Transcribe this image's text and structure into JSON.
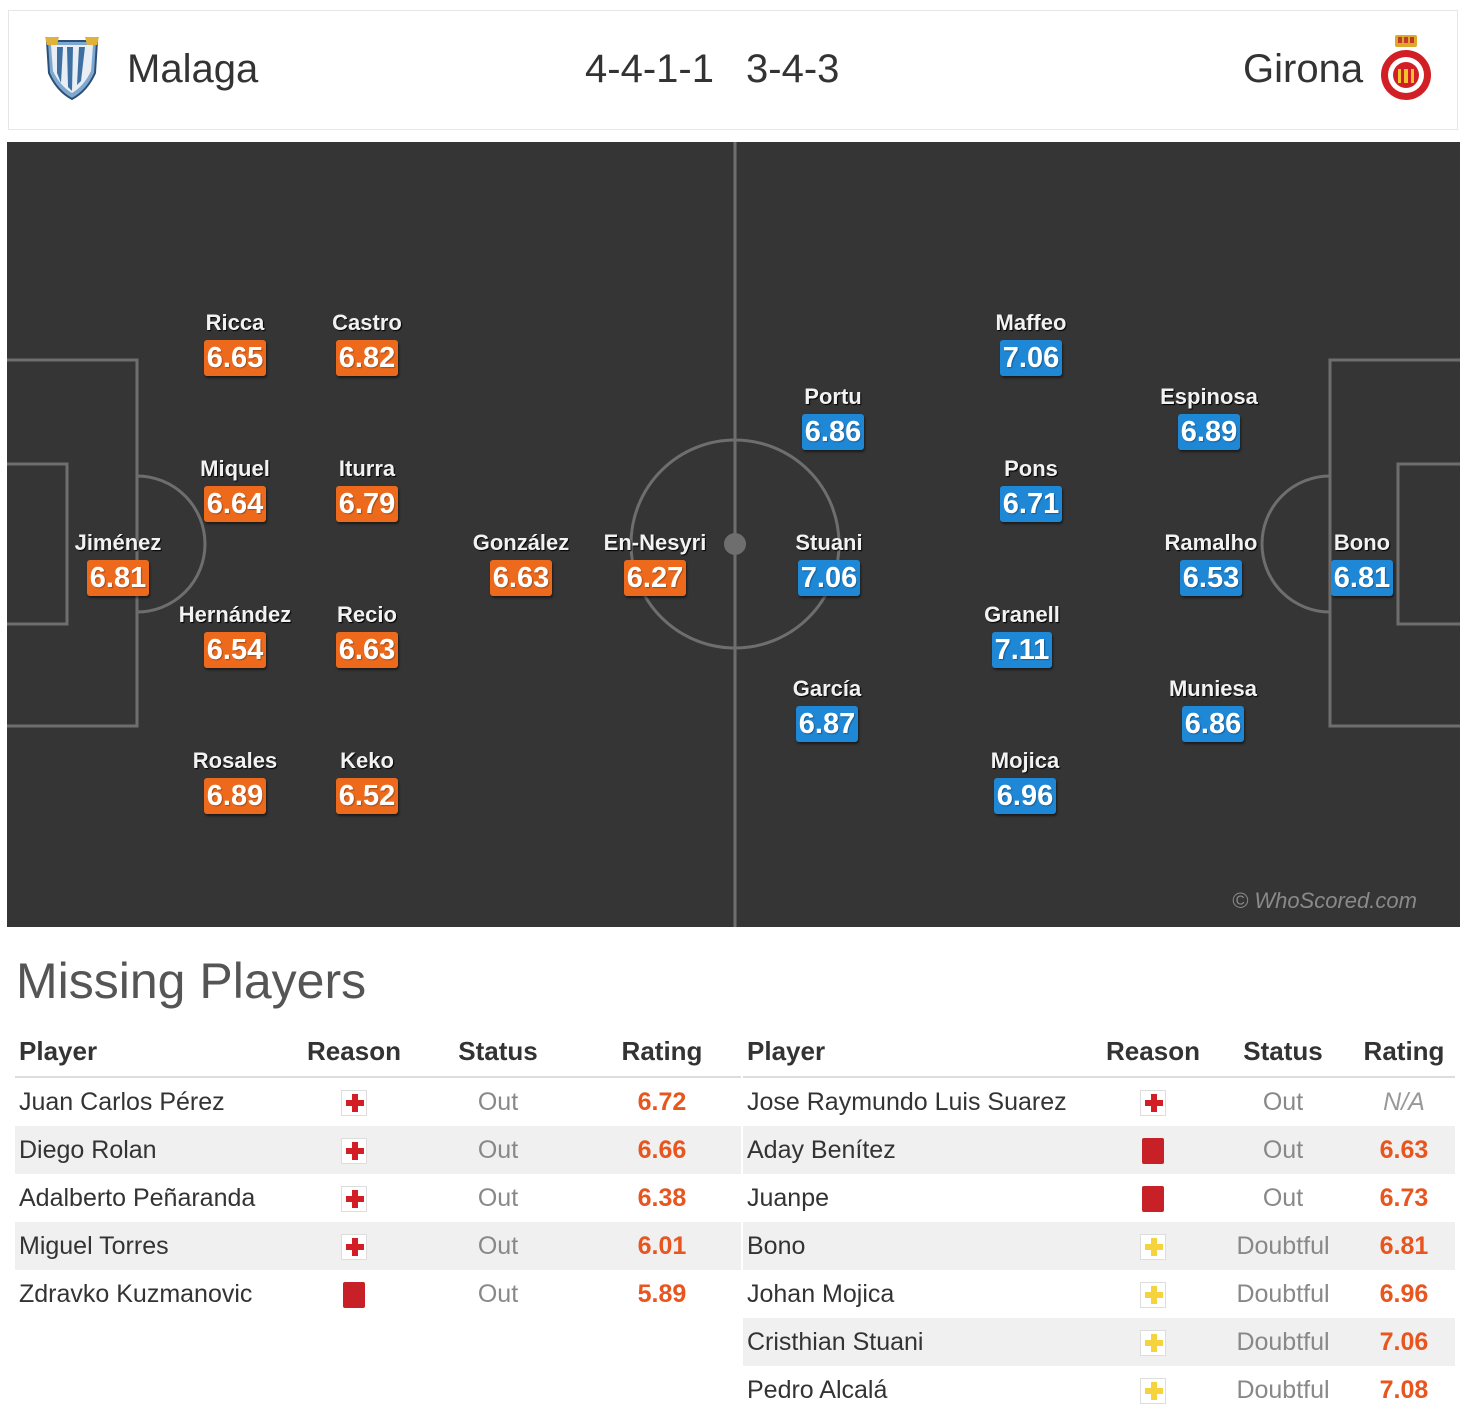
{
  "header": {
    "home_team": "Malaga",
    "away_team": "Girona",
    "home_formation": "4-4-1-1",
    "away_formation": "3-4-3"
  },
  "colors": {
    "pitch": "#353535",
    "home_rating_bg": "#ed6a1d",
    "away_rating_bg": "#1e87d6",
    "missing_rating_text": "#e8551e"
  },
  "pitch": {
    "watermark": "© WhoScored.com",
    "home_players": [
      {
        "name": "Ricca",
        "rating": "6.65"
      },
      {
        "name": "Castro",
        "rating": "6.82"
      },
      {
        "name": "Miquel",
        "rating": "6.64"
      },
      {
        "name": "Iturra",
        "rating": "6.79"
      },
      {
        "name": "Jiménez",
        "rating": "6.81"
      },
      {
        "name": "González",
        "rating": "6.63"
      },
      {
        "name": "En-Nesyri",
        "rating": "6.27"
      },
      {
        "name": "Hernández",
        "rating": "6.54"
      },
      {
        "name": "Recio",
        "rating": "6.63"
      },
      {
        "name": "Rosales",
        "rating": "6.89"
      },
      {
        "name": "Keko",
        "rating": "6.52"
      }
    ],
    "away_players": [
      {
        "name": "Maffeo",
        "rating": "7.06"
      },
      {
        "name": "Portu",
        "rating": "6.86"
      },
      {
        "name": "Espinosa",
        "rating": "6.89"
      },
      {
        "name": "Pons",
        "rating": "6.71"
      },
      {
        "name": "Stuani",
        "rating": "7.06"
      },
      {
        "name": "Ramalho",
        "rating": "6.53"
      },
      {
        "name": "Bono",
        "rating": "6.81"
      },
      {
        "name": "Granell",
        "rating": "7.11"
      },
      {
        "name": "García",
        "rating": "6.87"
      },
      {
        "name": "Muniesa",
        "rating": "6.86"
      },
      {
        "name": "Mojica",
        "rating": "6.96"
      }
    ]
  },
  "missing": {
    "title": "Missing Players",
    "headers": {
      "player": "Player",
      "reason": "Reason",
      "status": "Status",
      "rating": "Rating"
    },
    "home": [
      {
        "player": "Juan Carlos Pérez",
        "reason": "injury-icon",
        "status": "Out",
        "rating": "6.72"
      },
      {
        "player": "Diego Rolan",
        "reason": "injury-icon",
        "status": "Out",
        "rating": "6.66"
      },
      {
        "player": "Adalberto Peñaranda",
        "reason": "injury-icon",
        "status": "Out",
        "rating": "6.38"
      },
      {
        "player": "Miguel Torres",
        "reason": "injury-icon",
        "status": "Out",
        "rating": "6.01"
      },
      {
        "player": "Zdravko Kuzmanovic",
        "reason": "red-card-icon",
        "status": "Out",
        "rating": "5.89"
      }
    ],
    "away": [
      {
        "player": "Jose Raymundo Luis Suarez",
        "reason": "injury-icon",
        "status": "Out",
        "rating": "N/A"
      },
      {
        "player": "Aday Benítez",
        "reason": "red-card-icon",
        "status": "Out",
        "rating": "6.63"
      },
      {
        "player": "Juanpe",
        "reason": "red-card-icon",
        "status": "Out",
        "rating": "6.73"
      },
      {
        "player": "Bono",
        "reason": "doubtful-icon",
        "status": "Doubtful",
        "rating": "6.81"
      },
      {
        "player": "Johan Mojica",
        "reason": "doubtful-icon",
        "status": "Doubtful",
        "rating": "6.96"
      },
      {
        "player": "Cristhian Stuani",
        "reason": "doubtful-icon",
        "status": "Doubtful",
        "rating": "7.06"
      },
      {
        "player": "Pedro Alcalá",
        "reason": "doubtful-icon",
        "status": "Doubtful",
        "rating": "7.08"
      }
    ]
  }
}
